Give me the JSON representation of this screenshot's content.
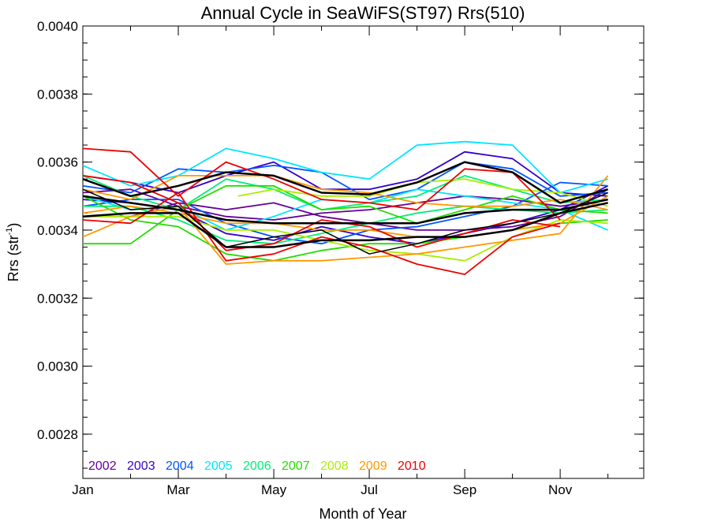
{
  "chart_data": {
    "type": "line",
    "title": "Annual Cycle in SeaWiFS(ST97) Rrs(510)",
    "xlabel": "Month of Year",
    "ylabel_main": "Rrs (str",
    "ylabel_sup": "-1",
    "ylabel_close": ")",
    "xlim": [
      1,
      12.75
    ],
    "ylim": [
      0.00267,
      0.004
    ],
    "x_ticks": [
      {
        "value": 1,
        "label": "Jan"
      },
      {
        "value": 3,
        "label": "Mar"
      },
      {
        "value": 5,
        "label": "May"
      },
      {
        "value": 7,
        "label": "Jul"
      },
      {
        "value": 9,
        "label": "Sep"
      },
      {
        "value": 11,
        "label": "Nov"
      }
    ],
    "y_ticks": [
      {
        "value": 0.0028,
        "label": "0.0028"
      },
      {
        "value": 0.003,
        "label": "0.0030"
      },
      {
        "value": 0.0032,
        "label": "0.0032"
      },
      {
        "value": 0.0034,
        "label": "0.0034"
      },
      {
        "value": 0.0036,
        "label": "0.0036"
      },
      {
        "value": 0.0038,
        "label": "0.0038"
      },
      {
        "value": 0.004,
        "label": "0.0040"
      }
    ],
    "grid": false,
    "legend_position": "bottom-left",
    "legend": [
      {
        "label": "2002",
        "color": "#660099"
      },
      {
        "label": "2003",
        "color": "#3300cc"
      },
      {
        "label": "2004",
        "color": "#0055ff"
      },
      {
        "label": "2005",
        "color": "#00e5ff"
      },
      {
        "label": "2006",
        "color": "#00ee77"
      },
      {
        "label": "2007",
        "color": "#22dd00"
      },
      {
        "label": "2008",
        "color": "#aaee00"
      },
      {
        "label": "2009",
        "color": "#ff9900"
      },
      {
        "label": "2010",
        "color": "#ee0000"
      }
    ],
    "series": [
      {
        "color": "#660099",
        "x": [
          1,
          2,
          3,
          4,
          5,
          6,
          7,
          8,
          9,
          10,
          11,
          12
        ],
        "y": [
          0.00351,
          0.00352,
          0.00347,
          0.00344,
          0.00343,
          0.00345,
          0.00346,
          0.00348,
          0.0035,
          0.00349,
          0.00347,
          0.00349
        ]
      },
      {
        "color": "#660099",
        "x": [
          1,
          2,
          3,
          4,
          5,
          6,
          7,
          8,
          9,
          10,
          11,
          12
        ],
        "y": [
          0.00344,
          0.00344,
          0.00348,
          0.00346,
          0.00348,
          0.00344,
          0.00342,
          0.0034,
          0.0034,
          0.00341,
          0.00344,
          0.00352
        ]
      },
      {
        "color": "#3300cc",
        "x": [
          1,
          2,
          3,
          4,
          5,
          6,
          7,
          8,
          9,
          10,
          11,
          12
        ],
        "y": [
          0.00356,
          0.00354,
          0.00351,
          0.00356,
          0.0036,
          0.00352,
          0.00352,
          0.00355,
          0.00363,
          0.00361,
          0.00351,
          0.0035
        ]
      },
      {
        "color": "#3300cc",
        "x": [
          1,
          2,
          3,
          4,
          5,
          6,
          7,
          8,
          9,
          10,
          11,
          12
        ],
        "y": [
          0.00349,
          0.00348,
          0.00346,
          0.00339,
          0.00337,
          0.00341,
          0.00338,
          0.00336,
          0.00339,
          0.00342,
          0.00346,
          0.00353
        ]
      },
      {
        "color": "#0055ff",
        "x": [
          1,
          2,
          3,
          4,
          5,
          6,
          7,
          8,
          9,
          10,
          11,
          12
        ],
        "y": [
          0.00353,
          0.00351,
          0.00358,
          0.00357,
          0.00359,
          0.00357,
          0.00349,
          0.00352,
          0.0036,
          0.00358,
          0.0035,
          0.00351
        ]
      },
      {
        "color": "#0055ff",
        "x": [
          1,
          2,
          3,
          4,
          5,
          6,
          7,
          8,
          9,
          10,
          11,
          12
        ],
        "y": [
          0.00347,
          0.00349,
          0.00349,
          0.00342,
          0.00338,
          0.00336,
          0.0034,
          0.00341,
          0.00344,
          0.00347,
          0.00354,
          0.00353
        ]
      },
      {
        "color": "#00e5ff",
        "x": [
          1,
          2,
          3,
          4,
          5,
          6,
          7,
          8,
          9,
          10,
          11,
          12
        ],
        "y": [
          0.00359,
          0.00353,
          0.00356,
          0.00364,
          0.00361,
          0.00357,
          0.00355,
          0.00365,
          0.00366,
          0.00365,
          0.00351,
          0.00355
        ]
      },
      {
        "color": "#00e5ff",
        "x": [
          1,
          2,
          3,
          4,
          5,
          6,
          7,
          8,
          9,
          10,
          11,
          12
        ],
        "y": [
          0.0035,
          0.00346,
          0.00347,
          0.0034,
          0.00344,
          0.00349,
          0.00348,
          0.00352,
          0.0035,
          0.00348,
          0.00346,
          0.0034
        ]
      },
      {
        "color": "#00ee77",
        "x": [
          1,
          2,
          3,
          4,
          5,
          6,
          7,
          8,
          9,
          10,
          11,
          12
        ],
        "y": [
          0.00356,
          0.0035,
          0.00346,
          0.00355,
          0.00352,
          0.00346,
          0.00348,
          0.0035,
          0.00356,
          0.00352,
          0.00348,
          0.00349
        ]
      },
      {
        "color": "#00ee77",
        "x": [
          1,
          2,
          3,
          4,
          5,
          6,
          7,
          8,
          9,
          10,
          11,
          12
        ],
        "y": [
          0.00347,
          0.00347,
          0.00343,
          0.00337,
          0.00336,
          0.00339,
          0.00342,
          0.00345,
          0.00347,
          0.00346,
          0.00345,
          0.00346
        ]
      },
      {
        "color": "#22dd00",
        "x": [
          1,
          2,
          3,
          4,
          5,
          6,
          7,
          8,
          9,
          10,
          11,
          12
        ],
        "y": [
          0.00336,
          0.00336,
          0.00346,
          0.00353,
          0.00353,
          0.00346,
          0.00347,
          0.00342,
          0.00346,
          0.0035,
          0.00346,
          0.00345
        ]
      },
      {
        "color": "#22dd00",
        "x": [
          1,
          2,
          3,
          4,
          5,
          6,
          7,
          8,
          9,
          10,
          11,
          12
        ],
        "y": [
          0.0035,
          0.00343,
          0.00341,
          0.00333,
          0.00331,
          0.00334,
          0.00336,
          0.00336,
          0.00338,
          0.0034,
          0.00342,
          0.00343
        ]
      },
      {
        "color": "#aaee00",
        "x": [
          4.25,
          5,
          6,
          7,
          8,
          9,
          10,
          11,
          12
        ],
        "y": [
          0.0035,
          0.00352,
          0.0035,
          0.0035,
          0.00354,
          0.00355,
          0.00352,
          0.00351,
          0.00347
        ]
      },
      {
        "color": "#aaee00",
        "x": [
          1,
          2,
          3,
          4,
          5,
          6,
          7,
          8,
          9,
          10,
          11,
          12
        ],
        "y": [
          0.00344,
          0.00344,
          0.00344,
          0.0034,
          0.0034,
          0.00337,
          0.00334,
          0.00333,
          0.00331,
          0.00338,
          0.00343,
          0.00342
        ]
      },
      {
        "color": "#ff9900",
        "x": [
          1,
          2,
          3,
          4,
          5,
          6,
          7,
          8,
          9,
          10,
          11,
          12
        ],
        "y": [
          0.00338,
          0.00344,
          0.00347,
          0.0033,
          0.00331,
          0.00331,
          0.00332,
          0.00333,
          0.00335,
          0.00337,
          0.00339,
          0.00356
        ]
      },
      {
        "color": "#ff9900",
        "x": [
          1,
          2,
          3,
          4,
          5,
          6,
          7,
          8,
          9,
          10,
          11,
          12
        ],
        "y": [
          0.00345,
          0.00347,
          0.00345,
          0.00342,
          0.00342,
          0.0034,
          0.0034,
          0.00338,
          0.00338,
          0.0034,
          0.00342,
          0.0035
        ]
      },
      {
        "color": "#ff9900",
        "x": [
          1,
          2,
          3,
          4,
          5,
          6,
          7,
          8,
          9,
          10,
          11,
          12
        ],
        "y": [
          0.00352,
          0.00349,
          0.00356,
          0.00356,
          0.00356,
          0.00352,
          0.00351,
          0.00348,
          0.00347,
          0.00347,
          0.00349,
          0.00346
        ]
      },
      {
        "color": "#ee0000",
        "x": [
          1,
          2,
          3,
          4,
          5,
          6,
          7,
          8,
          9,
          10,
          11
        ],
        "y": [
          0.00364,
          0.00363,
          0.0035,
          0.0036,
          0.00355,
          0.00349,
          0.00348,
          0.00346,
          0.00358,
          0.00357,
          0.00343
        ]
      },
      {
        "color": "#ee0000",
        "x": [
          1,
          2,
          3,
          4,
          5,
          6,
          7,
          8,
          9,
          10,
          11
        ],
        "y": [
          0.00343,
          0.00342,
          0.00351,
          0.00331,
          0.00333,
          0.00338,
          0.00335,
          0.0033,
          0.00327,
          0.00338,
          0.00342
        ]
      },
      {
        "color": "#ee0000",
        "x": [
          1,
          2,
          3,
          4,
          5,
          6,
          7,
          8,
          9,
          10,
          11
        ],
        "y": [
          0.00356,
          0.00354,
          0.00348,
          0.00334,
          0.00336,
          0.00343,
          0.00341,
          0.00335,
          0.00339,
          0.00343,
          0.00341
        ]
      },
      {
        "color": "#000000",
        "width": 2.5,
        "x": [
          1,
          2,
          3,
          4,
          5,
          6,
          7,
          8,
          9,
          10,
          11,
          12
        ],
        "y": [
          0.00355,
          0.0035,
          0.00353,
          0.00357,
          0.00356,
          0.00351,
          0.003505,
          0.00354,
          0.0036,
          0.00357,
          0.00348,
          0.00352
        ]
      },
      {
        "color": "#000000",
        "width": 2.5,
        "x": [
          1,
          2,
          3,
          4,
          5,
          6,
          7,
          8,
          9,
          10,
          11,
          12
        ],
        "y": [
          0.0035,
          0.00348,
          0.00346,
          0.00343,
          0.00342,
          0.00342,
          0.00342,
          0.00342,
          0.00345,
          0.00346,
          0.00346,
          0.00349
        ]
      },
      {
        "color": "#000000",
        "width": 2.5,
        "x": [
          1,
          2,
          3,
          4,
          5,
          6,
          7,
          8,
          9,
          10,
          11,
          12
        ],
        "y": [
          0.00344,
          0.00345,
          0.00345,
          0.00335,
          0.00335,
          0.00337,
          0.00337,
          0.00338,
          0.00338,
          0.0034,
          0.00345,
          0.00348
        ]
      },
      {
        "color": "#000000",
        "width": 1.5,
        "x": [
          1,
          2,
          3,
          4,
          5,
          6,
          7,
          8,
          9,
          10,
          11,
          12
        ],
        "y": [
          0.00352,
          0.00346,
          0.00347,
          0.00335,
          0.00338,
          0.0034,
          0.00333,
          0.00336,
          0.0034,
          0.00342,
          0.00345,
          0.00351
        ]
      }
    ]
  }
}
